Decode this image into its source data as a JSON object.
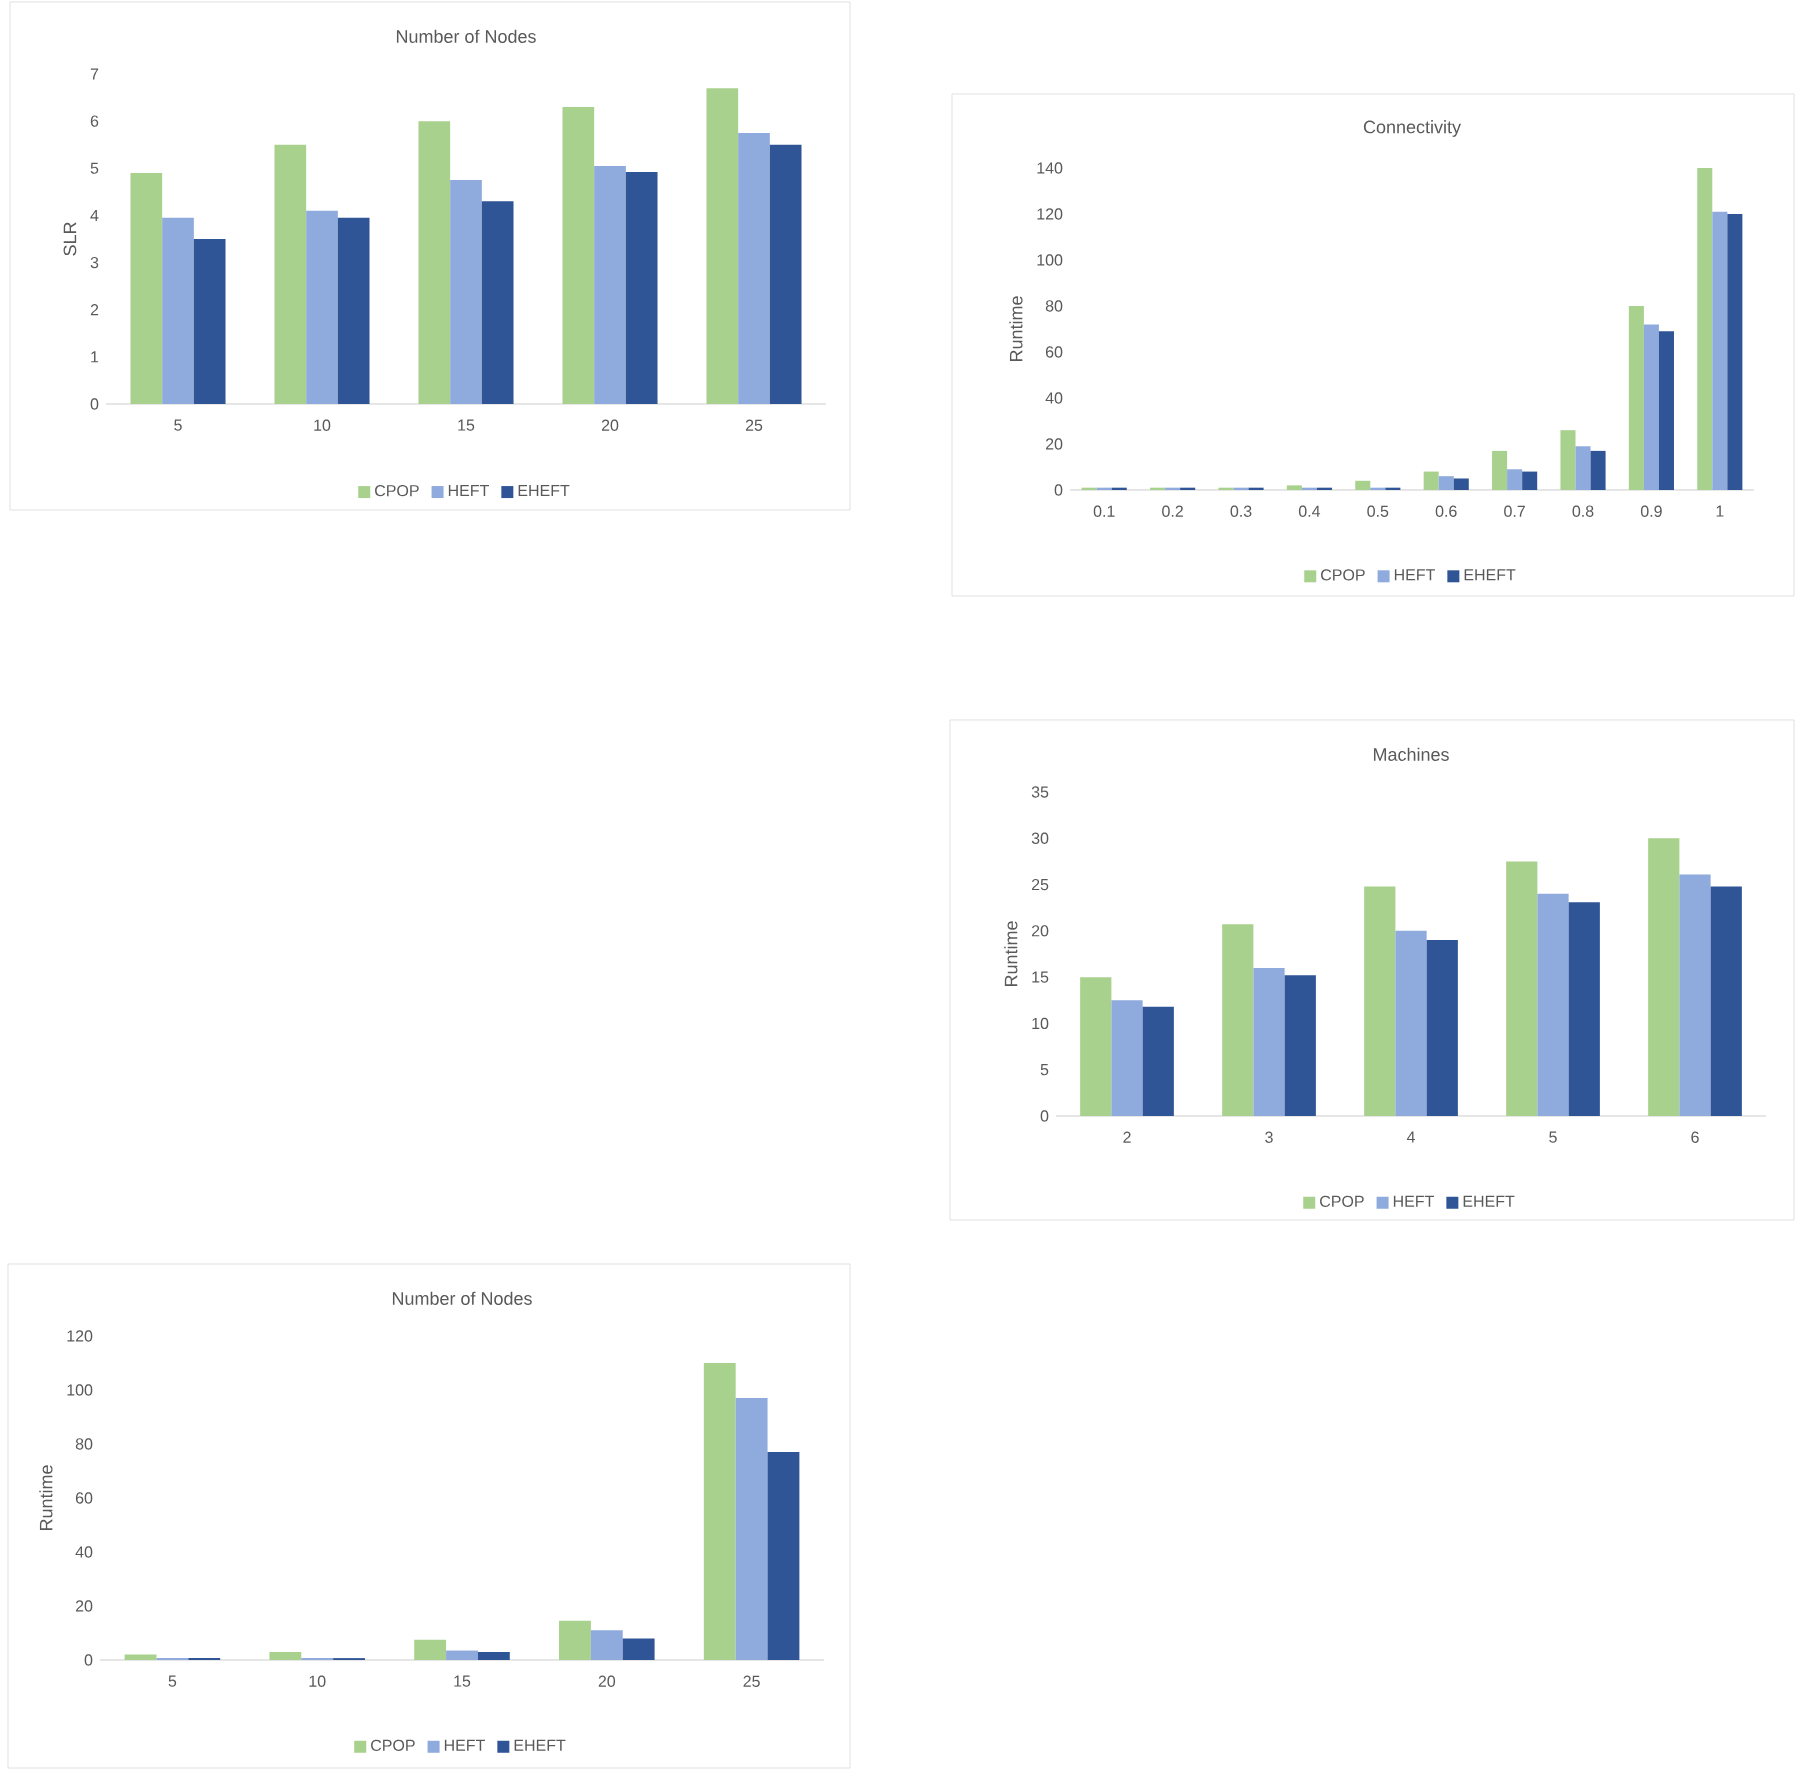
{
  "chart_data": [
    {
      "type": "bar",
      "title": "Number of Nodes",
      "ylabel": "SLR",
      "categories": [
        "5",
        "10",
        "15",
        "20",
        "25"
      ],
      "series": [
        {
          "name": "CPOP",
          "color": "#a9d18e",
          "values": [
            4.9,
            5.5,
            6.0,
            6.3,
            6.7
          ]
        },
        {
          "name": "HEFT",
          "color": "#8faadc",
          "values": [
            3.95,
            4.1,
            4.75,
            5.05,
            5.75
          ]
        },
        {
          "name": "EHEFT",
          "color": "#2f5597",
          "values": [
            3.5,
            3.95,
            4.3,
            4.92,
            5.5
          ]
        }
      ],
      "ylim": [
        0,
        7
      ],
      "yticks": [
        0,
        1,
        2,
        3,
        4,
        5,
        6,
        7
      ],
      "legend": "bottom"
    },
    {
      "type": "bar",
      "title": "Connectivity",
      "ylabel": "Runtime",
      "categories": [
        "0.1",
        "0.2",
        "0.3",
        "0.4",
        "0.5",
        "0.6",
        "0.7",
        "0.8",
        "0.9",
        "1"
      ],
      "series": [
        {
          "name": "CPOP",
          "color": "#a9d18e",
          "values": [
            1,
            1,
            1,
            2,
            4,
            8,
            17,
            26,
            80,
            140
          ]
        },
        {
          "name": "HEFT",
          "color": "#8faadc",
          "values": [
            1,
            1,
            1,
            1,
            1,
            6,
            9,
            19,
            72,
            121
          ]
        },
        {
          "name": "EHEFT",
          "color": "#2f5597",
          "values": [
            1,
            1,
            1,
            1,
            1,
            5,
            8,
            17,
            69,
            120
          ]
        }
      ],
      "ylim": [
        0,
        140
      ],
      "yticks": [
        0,
        20,
        40,
        60,
        80,
        100,
        120,
        140
      ],
      "legend": "bottom"
    },
    {
      "type": "bar",
      "title": "Machines",
      "ylabel": "Runtime",
      "categories": [
        "2",
        "3",
        "4",
        "5",
        "6"
      ],
      "series": [
        {
          "name": "CPOP",
          "color": "#a9d18e",
          "values": [
            15,
            20.7,
            24.8,
            27.5,
            30
          ]
        },
        {
          "name": "HEFT",
          "color": "#8faadc",
          "values": [
            12.5,
            16,
            20,
            24,
            26.1
          ]
        },
        {
          "name": "EHEFT",
          "color": "#2f5597",
          "values": [
            11.8,
            15.2,
            19,
            23.1,
            24.8
          ]
        }
      ],
      "ylim": [
        0,
        35
      ],
      "yticks": [
        0,
        5,
        10,
        15,
        20,
        25,
        30,
        35
      ],
      "legend": "bottom"
    },
    {
      "type": "bar",
      "title": "Number of Nodes",
      "ylabel": "Runtime",
      "categories": [
        "5",
        "10",
        "15",
        "20",
        "25"
      ],
      "series": [
        {
          "name": "CPOP",
          "color": "#a9d18e",
          "values": [
            2,
            3,
            7.5,
            14.5,
            110
          ]
        },
        {
          "name": "HEFT",
          "color": "#8faadc",
          "values": [
            0.7,
            0.7,
            3.5,
            11,
            97
          ]
        },
        {
          "name": "EHEFT",
          "color": "#2f5597",
          "values": [
            0.7,
            0.7,
            3,
            8,
            77
          ]
        }
      ],
      "ylim": [
        0,
        120
      ],
      "yticks": [
        0,
        20,
        40,
        60,
        80,
        100,
        120
      ],
      "legend": "bottom"
    }
  ]
}
